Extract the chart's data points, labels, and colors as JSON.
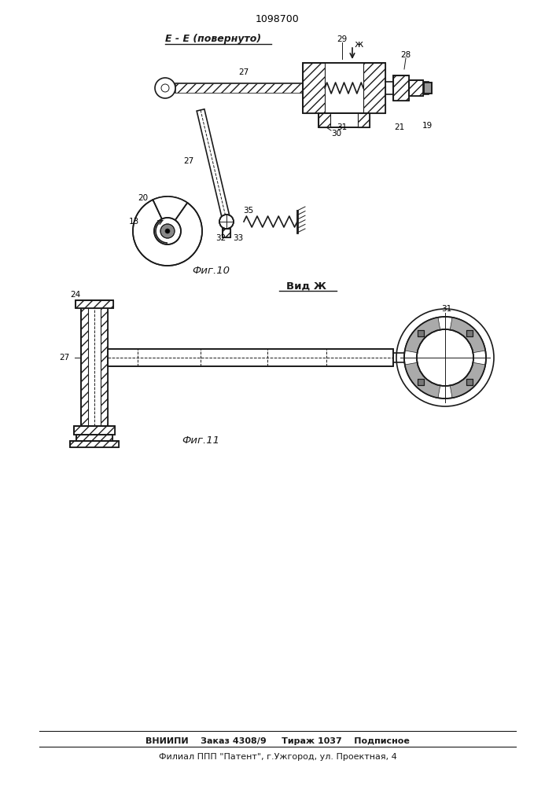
{
  "title": "1098700",
  "section_label_EE": "E - E (повернуто)",
  "section_label_VidZh": "Вид Ж",
  "fig10_label": "Фиг.10",
  "fig11_label": "Фиг.11",
  "footer_line1": "ВНИИПИ    Заказ 4308/9     Тираж 1037    Подписное",
  "footer_line2": "Филиал ППП \"Патент\", г.Ужгород, ул. Проектная, 4",
  "bg_color": "#ffffff",
  "line_color": "#1a1a1a"
}
